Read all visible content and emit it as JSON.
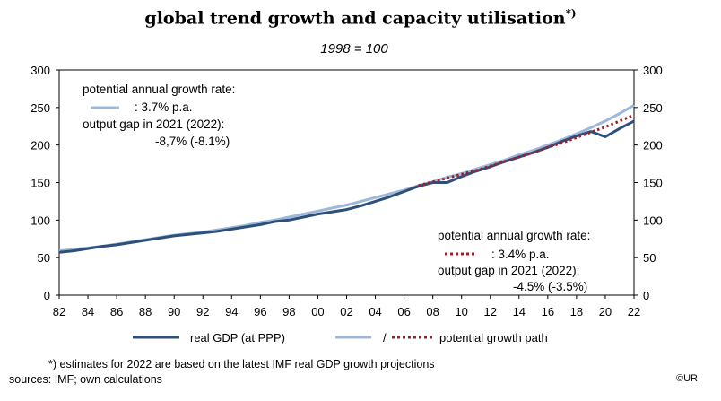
{
  "header": {
    "title": "global trend growth and capacity utilisation",
    "title_sup": "*)",
    "subtitle": "1998 = 100"
  },
  "annotations": {
    "upper_line1": "potential annual growth rate:",
    "upper_rate": ": 3.7% p.a.",
    "upper_gap_label": "output gap in 2021 (2022):",
    "upper_gap_value": "-8,7% (-8.1%)",
    "lower_line1": "potential annual growth rate:",
    "lower_rate": ": 3.4% p.a.",
    "lower_gap_label": "output gap in 2021 (2022):",
    "lower_gap_value": "-4.5% (-3.5%)"
  },
  "legend": {
    "real_gdp": "real GDP (at PPP)",
    "slash": "/",
    "potential": "potential growth path"
  },
  "footer": {
    "note": "*) estimates for 2022 are based on the latest IMF  real GDP growth projections",
    "sources": "sources: IMF;  own calculations",
    "copyright": "©UR"
  },
  "colors": {
    "real_gdp": "#2e4f7c",
    "potential_blue": "#9db8d9",
    "potential_red": "#a01e2a"
  },
  "chart_data": {
    "type": "line",
    "xlim": [
      1982,
      2022
    ],
    "ylim": [
      0,
      300
    ],
    "yticks": [
      0,
      50,
      100,
      150,
      200,
      250,
      300
    ],
    "xtick_labels": [
      "82",
      "84",
      "86",
      "88",
      "90",
      "92",
      "94",
      "96",
      "98",
      "00",
      "02",
      "04",
      "06",
      "08",
      "10",
      "12",
      "14",
      "16",
      "18",
      "20",
      "22"
    ],
    "series": [
      {
        "name": "real GDP (at PPP)",
        "x": [
          1982,
          1983,
          1984,
          1985,
          1986,
          1987,
          1988,
          1989,
          1990,
          1991,
          1992,
          1993,
          1994,
          1995,
          1996,
          1997,
          1998,
          1999,
          2000,
          2001,
          2002,
          2003,
          2004,
          2005,
          2006,
          2007,
          2008,
          2009,
          2010,
          2011,
          2012,
          2013,
          2014,
          2015,
          2016,
          2017,
          2018,
          2019,
          2020,
          2021,
          2022
        ],
        "values": [
          57,
          59,
          62,
          65,
          67,
          70,
          73,
          76,
          79,
          81,
          83,
          85,
          88,
          91,
          94,
          98,
          100,
          104,
          108,
          111,
          114,
          119,
          125,
          131,
          138,
          145,
          150,
          150,
          158,
          165,
          171,
          178,
          184,
          190,
          197,
          205,
          212,
          218,
          211,
          222,
          232
        ]
      },
      {
        "name": "potential growth path",
        "segment": "3.7% p.a.",
        "x": [
          1982,
          1983,
          1984,
          1985,
          1986,
          1987,
          1988,
          1989,
          1990,
          1991,
          1992,
          1993,
          1994,
          1995,
          1996,
          1997,
          1998,
          1999,
          2000,
          2001,
          2002,
          2003,
          2004,
          2005,
          2006,
          2007
        ],
        "values": [
          59,
          61,
          63,
          65,
          68,
          71,
          74,
          77,
          80,
          82,
          84,
          87,
          90,
          93,
          97,
          100,
          104,
          108,
          112,
          116,
          120,
          125,
          130,
          135,
          140,
          146
        ]
      },
      {
        "name": "potential growth path",
        "segment": "3.4% p.a.",
        "x": [
          2007,
          2008,
          2009,
          2010,
          2011,
          2012,
          2013,
          2014,
          2015,
          2016,
          2017,
          2018,
          2019,
          2020,
          2021,
          2022
        ],
        "values": [
          146,
          151,
          156,
          161,
          166,
          172,
          178,
          184,
          190,
          197,
          203,
          210,
          217,
          224,
          232,
          240
        ]
      },
      {
        "name": "potential growth path",
        "segment": "3.7% p.a. (later period)",
        "x": [
          2007,
          2008,
          2009,
          2010,
          2011,
          2012,
          2013,
          2014,
          2015,
          2016,
          2017,
          2018,
          2019,
          2020,
          2021,
          2022
        ],
        "values": [
          146,
          151,
          157,
          162,
          168,
          174,
          180,
          187,
          193,
          200,
          207,
          215,
          223,
          232,
          242,
          253
        ]
      }
    ],
    "grid": false
  }
}
